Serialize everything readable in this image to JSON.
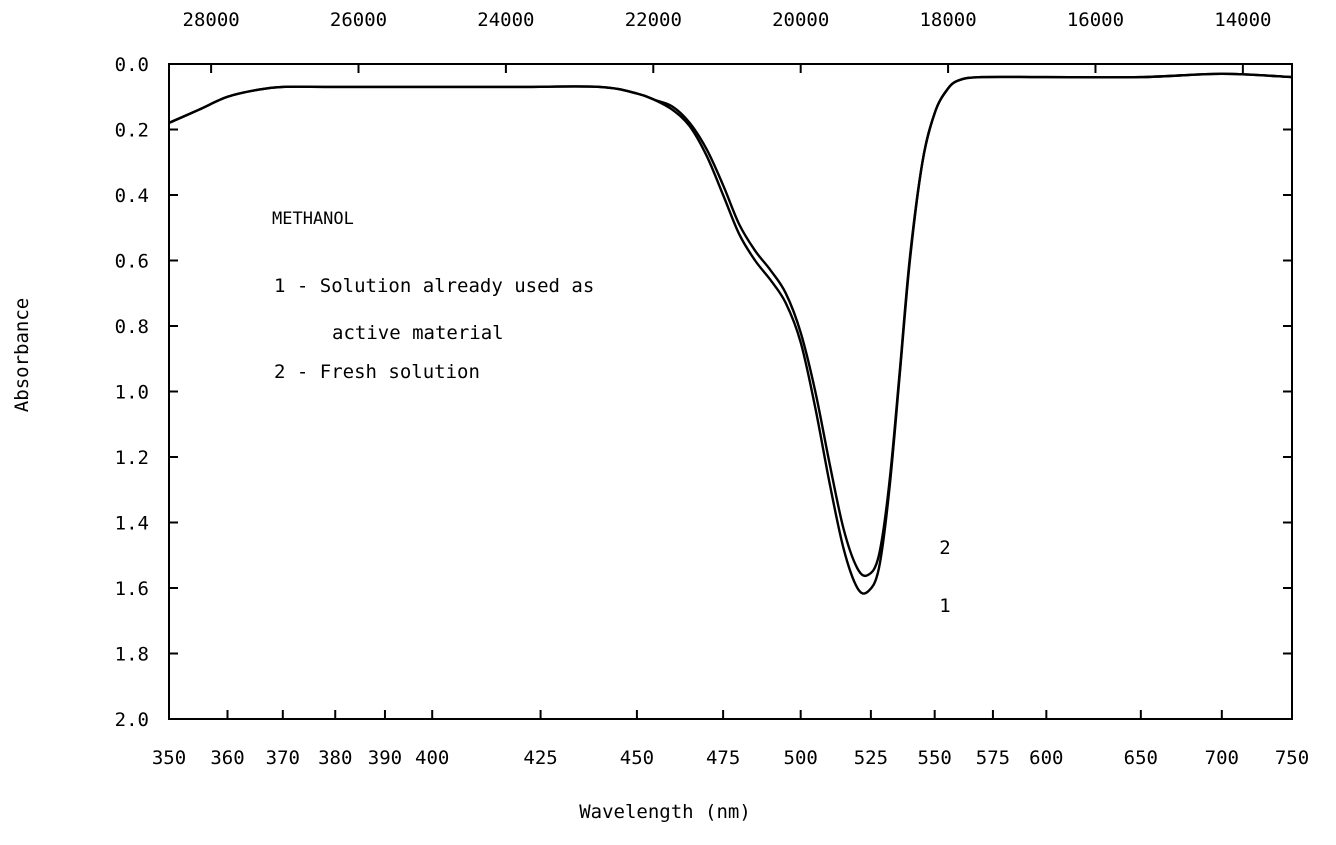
{
  "chart_data": {
    "type": "line",
    "xlabel": "Wavelength (nm)",
    "ylabel": "Absorbance",
    "x_scale": "reciprocal",
    "x_range_nm": [
      350,
      750
    ],
    "y_range": [
      0.0,
      2.0
    ],
    "y_inverted": true,
    "grid": false,
    "bottom_ticks_nm": [
      350,
      360,
      370,
      380,
      390,
      400,
      425,
      450,
      475,
      500,
      525,
      550,
      575,
      600,
      650,
      700,
      750
    ],
    "top_ticks_wavenumber": [
      "28000",
      "26000",
      "24000",
      "22000",
      "20000",
      "18000",
      "16000",
      "14000"
    ],
    "y_ticks": [
      "0.0",
      "0.2",
      "0.4",
      "0.6",
      "0.8",
      "1.0",
      "1.2",
      "1.4",
      "1.6",
      "1.8",
      "2.0"
    ],
    "annotations": {
      "solvent": "METHANOL",
      "legend_1a": "1 - Solution already used as",
      "legend_1b": "active material",
      "legend_2": "2 - Fresh solution",
      "curve_label_1": "1",
      "curve_label_2": "2"
    },
    "series": [
      {
        "name": "1",
        "x": [
          350,
          355,
          360,
          365,
          370,
          380,
          400,
          420,
          440,
          450,
          455,
          460,
          465,
          470,
          475,
          480,
          485,
          490,
          495,
          500,
          505,
          510,
          515,
          520,
          524,
          528,
          532,
          536,
          540,
          545,
          550,
          555,
          560,
          570,
          600,
          650,
          700,
          750
        ],
        "y": [
          0.18,
          0.14,
          0.1,
          0.08,
          0.07,
          0.07,
          0.07,
          0.07,
          0.07,
          0.09,
          0.11,
          0.14,
          0.19,
          0.28,
          0.4,
          0.52,
          0.6,
          0.66,
          0.73,
          0.85,
          1.05,
          1.28,
          1.48,
          1.6,
          1.61,
          1.54,
          1.3,
          0.95,
          0.6,
          0.3,
          0.15,
          0.08,
          0.05,
          0.04,
          0.04,
          0.04,
          0.03,
          0.04
        ]
      },
      {
        "name": "2",
        "x": [
          350,
          355,
          360,
          365,
          370,
          380,
          400,
          420,
          440,
          450,
          455,
          460,
          465,
          470,
          475,
          480,
          485,
          490,
          495,
          500,
          505,
          510,
          515,
          520,
          524,
          528,
          532,
          536,
          540,
          545,
          550,
          555,
          560,
          570,
          600,
          650,
          700,
          750
        ],
        "y": [
          0.18,
          0.14,
          0.1,
          0.08,
          0.07,
          0.07,
          0.07,
          0.07,
          0.07,
          0.09,
          0.11,
          0.13,
          0.18,
          0.26,
          0.37,
          0.49,
          0.57,
          0.63,
          0.7,
          0.82,
          1.0,
          1.22,
          1.42,
          1.54,
          1.56,
          1.5,
          1.28,
          0.94,
          0.59,
          0.3,
          0.15,
          0.08,
          0.05,
          0.04,
          0.04,
          0.04,
          0.03,
          0.04
        ]
      }
    ]
  }
}
